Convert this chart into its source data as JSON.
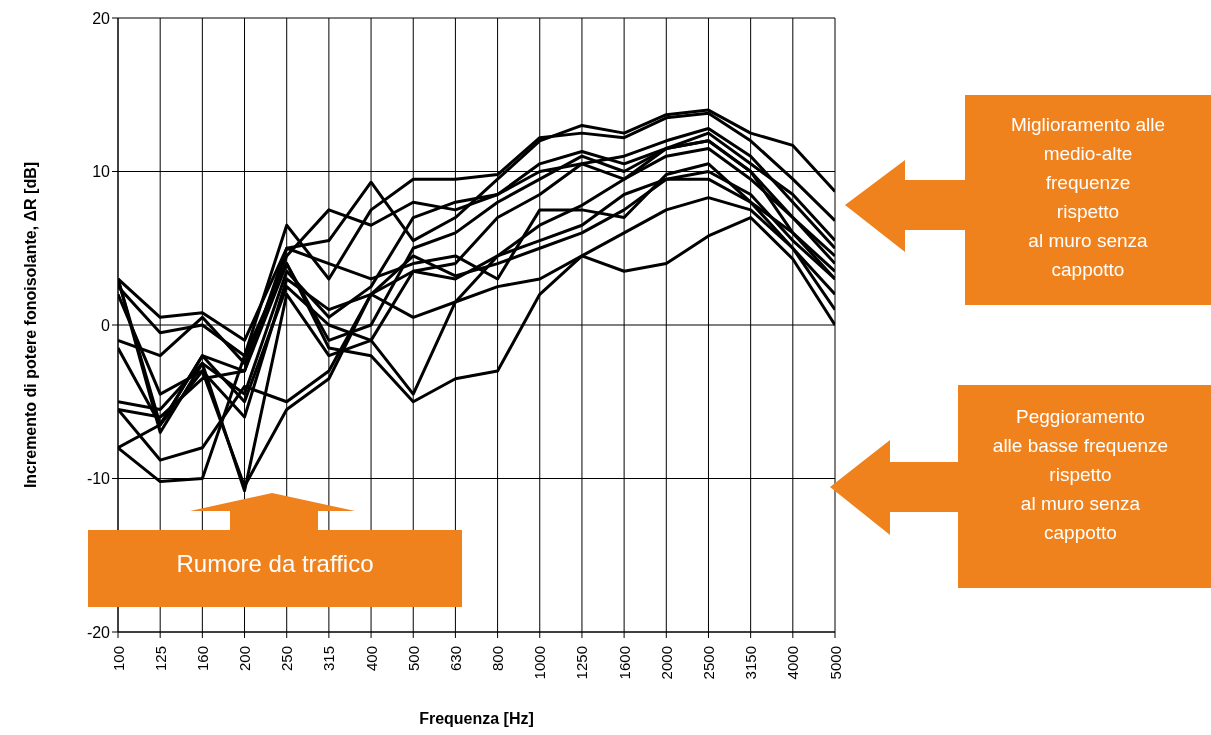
{
  "chart_data": {
    "type": "line",
    "xlabel": "Frequenza [Hz]",
    "ylabel": "Incremento di potere fonoisolante, ΔR [dB]",
    "categories": [
      "100",
      "125",
      "160",
      "200",
      "250",
      "315",
      "400",
      "500",
      "630",
      "800",
      "1000",
      "1250",
      "1600",
      "2000",
      "2500",
      "3150",
      "4000",
      "5000"
    ],
    "ylim": [
      -20,
      20
    ],
    "yticks": [
      -20,
      -10,
      0,
      10,
      20
    ],
    "grid": true,
    "marker": "none",
    "line_style": "solid",
    "series": [
      {
        "color": "#000000",
        "values": [
          3,
          0.5,
          0.8,
          -1,
          5,
          5.5,
          9.3,
          5.5,
          7,
          9.5,
          12,
          13,
          12.5,
          13.7,
          14,
          12.5,
          11.7,
          8.7
        ]
      },
      {
        "color": "#000000",
        "values": [
          2.5,
          -0.5,
          0,
          -2,
          6.5,
          3,
          7.5,
          9.5,
          9.5,
          9.8,
          12.2,
          12.5,
          12.2,
          13.5,
          13.8,
          12,
          9.5,
          6.8
        ]
      },
      {
        "color": "#000000",
        "values": [
          -1,
          -2,
          0.5,
          -2.5,
          4.5,
          7.5,
          6.5,
          8,
          7.5,
          8.5,
          10.5,
          11.3,
          10.5,
          11.5,
          12.5,
          10.5,
          8.5,
          5.5
        ]
      },
      {
        "color": "#000000",
        "values": [
          -5,
          -5.5,
          -2.5,
          -4.5,
          3.5,
          0.5,
          2.5,
          7,
          8,
          8.5,
          10,
          10.5,
          11,
          12,
          12.8,
          11,
          8,
          5
        ]
      },
      {
        "color": "#000000",
        "values": [
          -5.5,
          -6,
          -3.5,
          -3,
          4,
          -1,
          0,
          5,
          6,
          8,
          9.5,
          11,
          10,
          11.5,
          12,
          10,
          7,
          4.5
        ]
      },
      {
        "color": "#000000",
        "values": [
          3,
          -6.5,
          -2,
          -5,
          2.5,
          0,
          -1,
          3.5,
          4,
          7,
          8.5,
          10.5,
          9.5,
          11,
          11.5,
          9.5,
          7,
          4
        ]
      },
      {
        "color": "#000000",
        "values": [
          -8,
          -6.5,
          -3,
          -6,
          3,
          1,
          2,
          3.5,
          3,
          4.5,
          6.5,
          7.8,
          9.5,
          11.5,
          12,
          10,
          6,
          3.5
        ]
      },
      {
        "color": "#000000",
        "values": [
          -1.5,
          -6.5,
          -2,
          -3,
          5,
          4,
          3,
          4,
          4.5,
          3,
          7.5,
          7.5,
          7,
          9.8,
          10.5,
          8,
          6,
          3
        ]
      },
      {
        "color": "#000000",
        "values": [
          -5.5,
          -8.8,
          -8,
          -4,
          -5,
          -3,
          2,
          4.5,
          3.2,
          4,
          5,
          6,
          7.5,
          9.5,
          9.5,
          8,
          5,
          1
        ]
      },
      {
        "color": "#000000",
        "values": [
          -8,
          -10.2,
          -10,
          -2,
          4,
          -1.5,
          -2,
          -5,
          -3.5,
          -3,
          2,
          4.5,
          3.5,
          4,
          5.8,
          7,
          4.3,
          0
        ]
      },
      {
        "color": "#000000",
        "values": [
          2,
          -4.5,
          -3,
          -10.5,
          -5.5,
          -3.5,
          2,
          0.5,
          1.5,
          4.5,
          5.5,
          6.5,
          8.5,
          9.5,
          10,
          8.5,
          5.5,
          3
        ]
      },
      {
        "color": "#000000",
        "values": [
          3,
          -7,
          -2.5,
          -10.8,
          2,
          -2,
          -1,
          -4.5,
          1.5,
          2.5,
          3,
          4.5,
          6,
          7.5,
          8.3,
          7.5,
          5,
          2
        ]
      }
    ],
    "annotations": [
      "Rumore da traffico",
      "Miglioramento alle\nmedio-alte\nfrequenze\nrispetto\nal muro senza\ncappotto",
      "Peggioramento\nalle basse frequenze\nrispetto\nal muro senza\ncappotto"
    ]
  }
}
